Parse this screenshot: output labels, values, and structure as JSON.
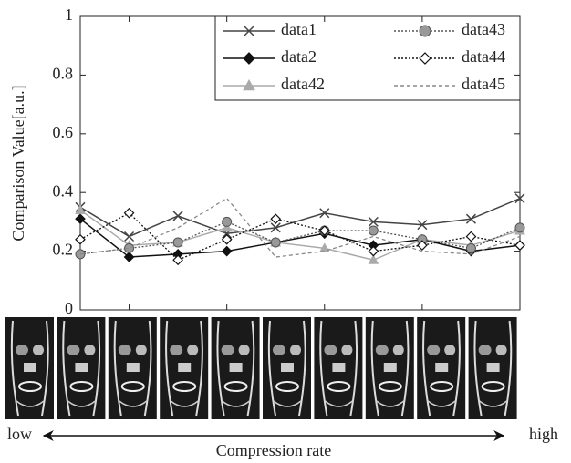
{
  "chart_data": {
    "type": "line",
    "y_label": "Comparison Value[a.u.]",
    "x_label": "Compression rate",
    "annotations": [
      "low",
      "high"
    ],
    "x": [
      1,
      2,
      3,
      4,
      5,
      6,
      7,
      8,
      9,
      10
    ],
    "xlim": [
      1,
      10
    ],
    "xticks": [
      2,
      4,
      6,
      8
    ],
    "ylim": [
      0,
      1
    ],
    "yticks": [
      0,
      0.2,
      0.4,
      0.6,
      0.8,
      1
    ],
    "series": [
      {
        "name": "data1",
        "color": "#444444",
        "marker": "x",
        "line_style": "solid",
        "values": [
          0.35,
          0.25,
          0.32,
          0.26,
          0.28,
          0.33,
          0.3,
          0.29,
          0.31,
          0.38
        ]
      },
      {
        "name": "data2",
        "color": "#111111",
        "marker": "diamond-filled",
        "line_style": "solid",
        "values": [
          0.31,
          0.18,
          0.19,
          0.2,
          0.23,
          0.26,
          0.22,
          0.24,
          0.2,
          0.22
        ]
      },
      {
        "name": "data42",
        "color": "#aaaaaa",
        "marker": "triangle",
        "line_style": "solid",
        "values": [
          0.34,
          0.22,
          0.23,
          0.28,
          0.23,
          0.21,
          0.17,
          0.24,
          0.22,
          0.27
        ]
      },
      {
        "name": "data43",
        "color": "#555555",
        "marker": "circle",
        "line_style": "dotted",
        "values": [
          0.19,
          0.21,
          0.23,
          0.3,
          0.23,
          0.27,
          0.27,
          0.24,
          0.21,
          0.28
        ]
      },
      {
        "name": "data44",
        "color": "#111111",
        "marker": "diamond-open",
        "line_style": "dotted",
        "values": [
          0.24,
          0.33,
          0.17,
          0.24,
          0.31,
          0.27,
          0.2,
          0.22,
          0.25,
          0.22
        ]
      },
      {
        "name": "data45",
        "color": "#888888",
        "marker": "none",
        "line_style": "dashed",
        "values": [
          0.19,
          0.21,
          0.28,
          0.38,
          0.18,
          0.2,
          0.25,
          0.2,
          0.19,
          0.25
        ]
      }
    ]
  }
}
